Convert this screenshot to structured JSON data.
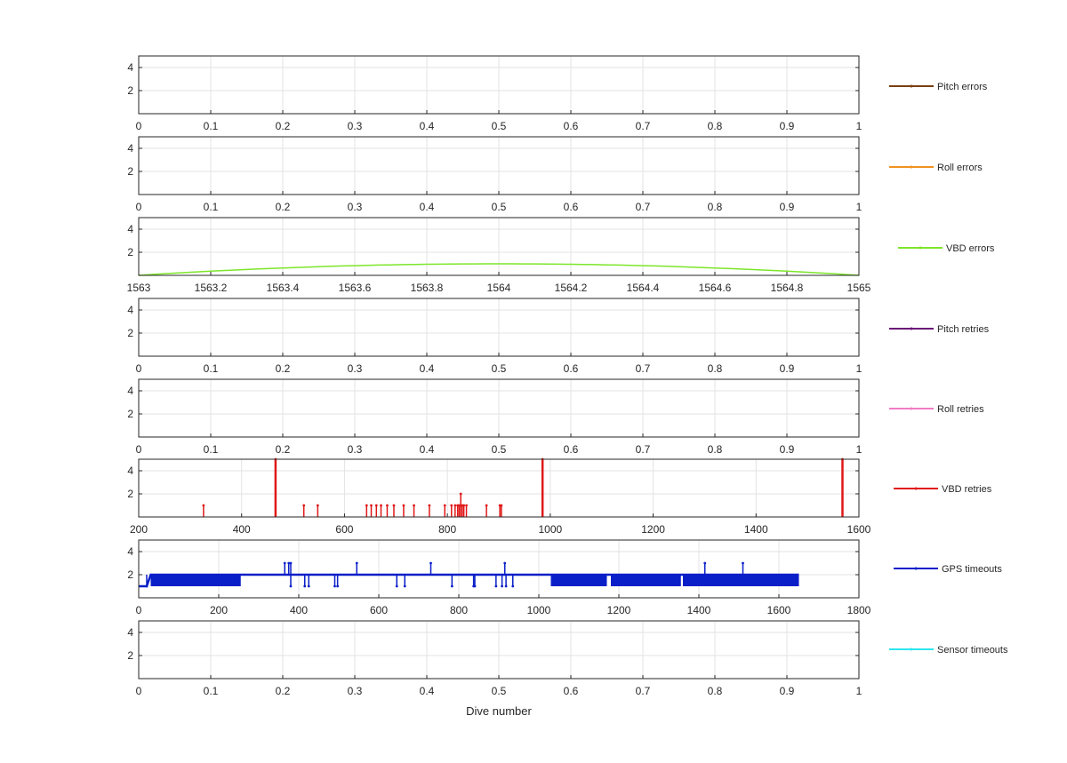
{
  "chart_data": [
    {
      "type": "line",
      "name": "Pitch errors",
      "series": [
        {
          "name": "Pitch errors",
          "color": "#7b3f12",
          "points": []
        }
      ],
      "xlim": [
        0,
        1
      ],
      "ylim": [
        0,
        5
      ],
      "xticks": [
        "0",
        "0.1",
        "0.2",
        "0.3",
        "0.4",
        "0.5",
        "0.6",
        "0.7",
        "0.8",
        "0.9",
        "1"
      ],
      "yticks": [
        "2",
        "4"
      ],
      "legend": "Pitch errors",
      "grid": true
    },
    {
      "type": "line",
      "name": "Roll errors",
      "series": [
        {
          "name": "Roll errors",
          "color": "#f0911e",
          "points": []
        }
      ],
      "xlim": [
        0,
        1
      ],
      "ylim": [
        0,
        5
      ],
      "xticks": [
        "0",
        "0.1",
        "0.2",
        "0.3",
        "0.4",
        "0.5",
        "0.6",
        "0.7",
        "0.8",
        "0.9",
        "1"
      ],
      "yticks": [
        "2",
        "4"
      ],
      "legend": "Roll errors",
      "grid": true
    },
    {
      "type": "line",
      "name": "VBD errors",
      "series": [
        {
          "name": "VBD errors",
          "color": "#7ce62a",
          "points": [
            [
              1563,
              0
            ],
            [
              1564,
              1
            ],
            [
              1565,
              0
            ]
          ]
        }
      ],
      "xlim": [
        1563,
        1565
      ],
      "ylim": [
        0,
        5
      ],
      "xticks": [
        "1563",
        "1563.2",
        "1563.4",
        "1563.6",
        "1563.8",
        "1564",
        "1564.2",
        "1564.4",
        "1564.6",
        "1564.8",
        "1565"
      ],
      "yticks": [
        "2",
        "4"
      ],
      "legend": "VBD errors",
      "grid": true
    },
    {
      "type": "line",
      "name": "Pitch retries",
      "series": [
        {
          "name": "Pitch retries",
          "color": "#6b1078",
          "points": []
        }
      ],
      "xlim": [
        0,
        1
      ],
      "ylim": [
        0,
        5
      ],
      "xticks": [
        "0",
        "0.1",
        "0.2",
        "0.3",
        "0.4",
        "0.5",
        "0.6",
        "0.7",
        "0.8",
        "0.9",
        "1"
      ],
      "yticks": [
        "2",
        "4"
      ],
      "legend": "Pitch retries",
      "grid": true
    },
    {
      "type": "line",
      "name": "Roll retries",
      "series": [
        {
          "name": "Roll retries",
          "color": "#f27cc4",
          "points": []
        }
      ],
      "xlim": [
        0,
        1
      ],
      "ylim": [
        0,
        5
      ],
      "xticks": [
        "0",
        "0.1",
        "0.2",
        "0.3",
        "0.4",
        "0.5",
        "0.6",
        "0.7",
        "0.8",
        "0.9",
        "1"
      ],
      "yticks": [
        "2",
        "4"
      ],
      "legend": "Roll retries",
      "grid": true
    },
    {
      "type": "line",
      "name": "VBD retries",
      "series": [
        {
          "name": "VBD retries",
          "color": "#e01818",
          "spikes": [
            [
              326,
              1
            ],
            [
              466,
              5
            ],
            [
              521,
              1
            ],
            [
              548,
              1
            ],
            [
              643,
              1
            ],
            [
              652,
              1
            ],
            [
              662,
              1
            ],
            [
              671,
              1
            ],
            [
              683,
              1
            ],
            [
              696,
              1
            ],
            [
              715,
              1
            ],
            [
              735,
              1
            ],
            [
              765,
              1
            ],
            [
              795,
              1
            ],
            [
              808,
              1
            ],
            [
              815,
              1
            ],
            [
              820,
              1
            ],
            [
              823,
              1
            ],
            [
              826,
              2
            ],
            [
              829,
              1
            ],
            [
              832,
              1
            ],
            [
              837,
              1
            ],
            [
              876,
              1
            ],
            [
              902,
              1
            ],
            [
              905,
              1
            ],
            [
              985,
              5
            ],
            [
              1568,
              5
            ]
          ]
        }
      ],
      "xlim": [
        200,
        1600
      ],
      "ylim": [
        0,
        5
      ],
      "xticks": [
        "200",
        "400",
        "600",
        "800",
        "1000",
        "1200",
        "1400",
        "1600"
      ],
      "yticks": [
        "2",
        "4"
      ],
      "legend": "VBD retries",
      "grid": true
    },
    {
      "type": "line",
      "name": "GPS timeouts",
      "series": [
        {
          "name": "GPS timeouts",
          "color": "#0a1fc8",
          "baseline": [
            [
              0,
              1
            ],
            [
              20,
              1
            ],
            [
              30,
              2
            ],
            [
              1650,
              2
            ]
          ],
          "dense_regions": [
            [
              30,
              255,
              1,
              2
            ],
            [
              1030,
              1170,
              1,
              2
            ],
            [
              1180,
              1355,
              1,
              2
            ],
            [
              1360,
              1650,
              1,
              2
            ]
          ],
          "spikes_up": [
            [
              365,
              3
            ],
            [
              375,
              3
            ],
            [
              380,
              3
            ],
            [
              545,
              3
            ],
            [
              730,
              3
            ],
            [
              915,
              3
            ],
            [
              1415,
              3
            ],
            [
              1510,
              3
            ]
          ],
          "spikes_down": [
            [
              20,
              1
            ],
            [
              380,
              1
            ],
            [
              415,
              1
            ],
            [
              425,
              1
            ],
            [
              490,
              1
            ],
            [
              497,
              1
            ],
            [
              645,
              1
            ],
            [
              665,
              1
            ],
            [
              783,
              1
            ],
            [
              837,
              1
            ],
            [
              840,
              1
            ],
            [
              893,
              1
            ],
            [
              908,
              1
            ],
            [
              918,
              1
            ],
            [
              935,
              1
            ]
          ]
        }
      ],
      "xlim": [
        0,
        1800
      ],
      "ylim": [
        0,
        5
      ],
      "xticks": [
        "0",
        "200",
        "400",
        "600",
        "800",
        "1000",
        "1200",
        "1400",
        "1600",
        "1800"
      ],
      "yticks": [
        "2",
        "4"
      ],
      "legend": "GPS timeouts",
      "grid": true
    },
    {
      "type": "line",
      "name": "Sensor timeouts",
      "series": [
        {
          "name": "Sensor timeouts",
          "color": "#2ee6ee",
          "points": []
        }
      ],
      "xlim": [
        0,
        1
      ],
      "ylim": [
        0,
        5
      ],
      "xticks": [
        "0",
        "0.1",
        "0.2",
        "0.3",
        "0.4",
        "0.5",
        "0.6",
        "0.7",
        "0.8",
        "0.9",
        "1"
      ],
      "yticks": [
        "2",
        "4"
      ],
      "legend": "Sensor timeouts",
      "grid": true,
      "xlabel": "Dive number"
    }
  ]
}
